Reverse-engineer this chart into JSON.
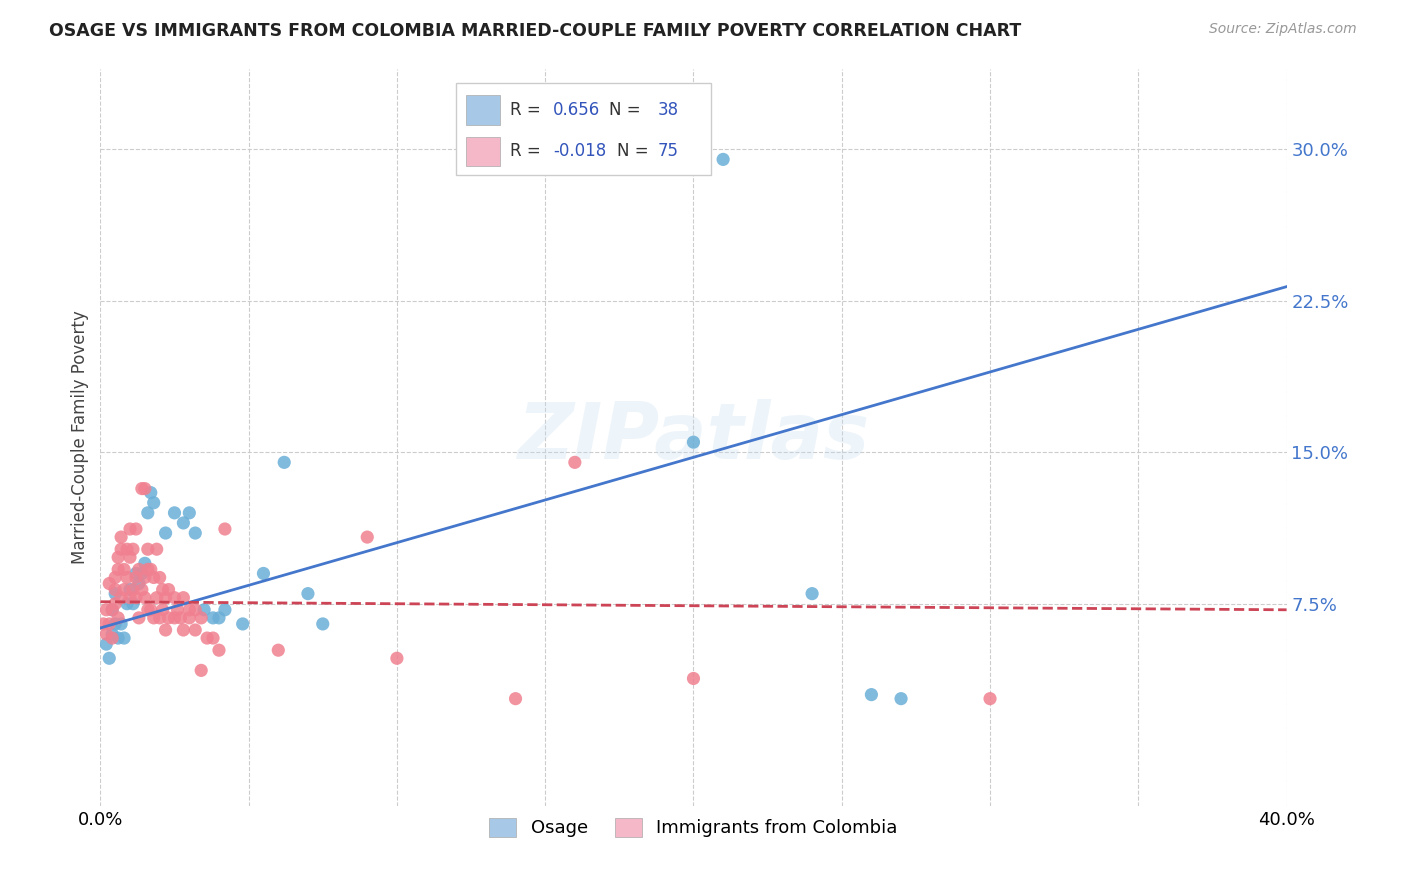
{
  "title": "OSAGE VS IMMIGRANTS FROM COLOMBIA MARRIED-COUPLE FAMILY POVERTY CORRELATION CHART",
  "source": "Source: ZipAtlas.com",
  "ylabel": "Married-Couple Family Poverty",
  "yticks": [
    "7.5%",
    "15.0%",
    "22.5%",
    "30.0%"
  ],
  "ytick_vals": [
    0.075,
    0.15,
    0.225,
    0.3
  ],
  "xlim": [
    0.0,
    0.4
  ],
  "ylim": [
    -0.025,
    0.34
  ],
  "legend_entries": [
    {
      "label": "Osage",
      "R": "0.656",
      "N": "38",
      "swatch_color": "#a8c8e8"
    },
    {
      "label": "Immigrants from Colombia",
      "R": "-0.018",
      "N": "75",
      "swatch_color": "#f4b8c8"
    }
  ],
  "watermark": "ZIPatlas",
  "osage_color": "#6aaed6",
  "colombia_color": "#f08090",
  "osage_line_color": "#4477cc",
  "colombia_line_color": "#cc4455",
  "background_color": "#ffffff",
  "grid_color": "#cccccc",
  "osage_line": [
    0.0,
    0.063,
    0.4,
    0.232
  ],
  "colombia_line": [
    0.0,
    0.076,
    0.4,
    0.072
  ],
  "osage_scatter": [
    [
      0.002,
      0.055
    ],
    [
      0.003,
      0.048
    ],
    [
      0.004,
      0.06
    ],
    [
      0.004,
      0.072
    ],
    [
      0.005,
      0.065
    ],
    [
      0.005,
      0.08
    ],
    [
      0.006,
      0.058
    ],
    [
      0.007,
      0.065
    ],
    [
      0.008,
      0.058
    ],
    [
      0.009,
      0.075
    ],
    [
      0.01,
      0.082
    ],
    [
      0.011,
      0.075
    ],
    [
      0.012,
      0.09
    ],
    [
      0.013,
      0.085
    ],
    [
      0.014,
      0.09
    ],
    [
      0.015,
      0.095
    ],
    [
      0.016,
      0.12
    ],
    [
      0.017,
      0.13
    ],
    [
      0.018,
      0.125
    ],
    [
      0.022,
      0.11
    ],
    [
      0.025,
      0.12
    ],
    [
      0.028,
      0.115
    ],
    [
      0.03,
      0.12
    ],
    [
      0.032,
      0.11
    ],
    [
      0.035,
      0.072
    ],
    [
      0.038,
      0.068
    ],
    [
      0.04,
      0.068
    ],
    [
      0.042,
      0.072
    ],
    [
      0.048,
      0.065
    ],
    [
      0.055,
      0.09
    ],
    [
      0.062,
      0.145
    ],
    [
      0.07,
      0.08
    ],
    [
      0.075,
      0.065
    ],
    [
      0.2,
      0.155
    ],
    [
      0.21,
      0.295
    ],
    [
      0.24,
      0.08
    ],
    [
      0.26,
      0.03
    ],
    [
      0.27,
      0.028
    ]
  ],
  "colombia_scatter": [
    [
      0.001,
      0.065
    ],
    [
      0.002,
      0.06
    ],
    [
      0.002,
      0.072
    ],
    [
      0.003,
      0.065
    ],
    [
      0.003,
      0.085
    ],
    [
      0.004,
      0.058
    ],
    [
      0.004,
      0.072
    ],
    [
      0.005,
      0.075
    ],
    [
      0.005,
      0.082
    ],
    [
      0.005,
      0.088
    ],
    [
      0.006,
      0.068
    ],
    [
      0.006,
      0.092
    ],
    [
      0.006,
      0.098
    ],
    [
      0.007,
      0.078
    ],
    [
      0.007,
      0.102
    ],
    [
      0.007,
      0.108
    ],
    [
      0.008,
      0.082
    ],
    [
      0.008,
      0.092
    ],
    [
      0.009,
      0.088
    ],
    [
      0.009,
      0.102
    ],
    [
      0.01,
      0.078
    ],
    [
      0.01,
      0.098
    ],
    [
      0.01,
      0.112
    ],
    [
      0.011,
      0.082
    ],
    [
      0.011,
      0.102
    ],
    [
      0.012,
      0.078
    ],
    [
      0.012,
      0.088
    ],
    [
      0.012,
      0.112
    ],
    [
      0.013,
      0.068
    ],
    [
      0.013,
      0.092
    ],
    [
      0.014,
      0.082
    ],
    [
      0.014,
      0.132
    ],
    [
      0.015,
      0.078
    ],
    [
      0.015,
      0.088
    ],
    [
      0.015,
      0.132
    ],
    [
      0.016,
      0.072
    ],
    [
      0.016,
      0.092
    ],
    [
      0.016,
      0.102
    ],
    [
      0.017,
      0.072
    ],
    [
      0.017,
      0.092
    ],
    [
      0.018,
      0.068
    ],
    [
      0.018,
      0.088
    ],
    [
      0.019,
      0.078
    ],
    [
      0.019,
      0.102
    ],
    [
      0.02,
      0.068
    ],
    [
      0.02,
      0.088
    ],
    [
      0.021,
      0.072
    ],
    [
      0.021,
      0.082
    ],
    [
      0.022,
      0.062
    ],
    [
      0.022,
      0.078
    ],
    [
      0.023,
      0.068
    ],
    [
      0.023,
      0.082
    ],
    [
      0.025,
      0.068
    ],
    [
      0.025,
      0.078
    ],
    [
      0.026,
      0.072
    ],
    [
      0.027,
      0.068
    ],
    [
      0.028,
      0.062
    ],
    [
      0.028,
      0.078
    ],
    [
      0.03,
      0.068
    ],
    [
      0.03,
      0.072
    ],
    [
      0.032,
      0.062
    ],
    [
      0.032,
      0.072
    ],
    [
      0.034,
      0.068
    ],
    [
      0.034,
      0.042
    ],
    [
      0.036,
      0.058
    ],
    [
      0.038,
      0.058
    ],
    [
      0.04,
      0.052
    ],
    [
      0.042,
      0.112
    ],
    [
      0.06,
      0.052
    ],
    [
      0.09,
      0.108
    ],
    [
      0.1,
      0.048
    ],
    [
      0.14,
      0.028
    ],
    [
      0.16,
      0.145
    ],
    [
      0.2,
      0.038
    ],
    [
      0.3,
      0.028
    ]
  ]
}
